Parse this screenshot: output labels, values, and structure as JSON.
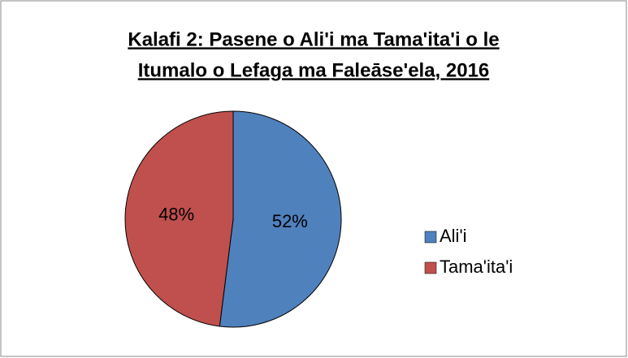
{
  "chart_data": {
    "type": "pie",
    "title": [
      "Kalafi 2: Pasene o Ali'i ma Tama'ita'i o le",
      "Itumalo o Lefaga ma Faleāse'ela, 2016"
    ],
    "categories": [
      "Ali'i",
      "Tama'ita'i"
    ],
    "values": [
      52,
      48
    ],
    "value_labels": [
      "52%",
      "48%"
    ],
    "colors": [
      "#4f81bd",
      "#c0504d"
    ],
    "legend": "right"
  }
}
